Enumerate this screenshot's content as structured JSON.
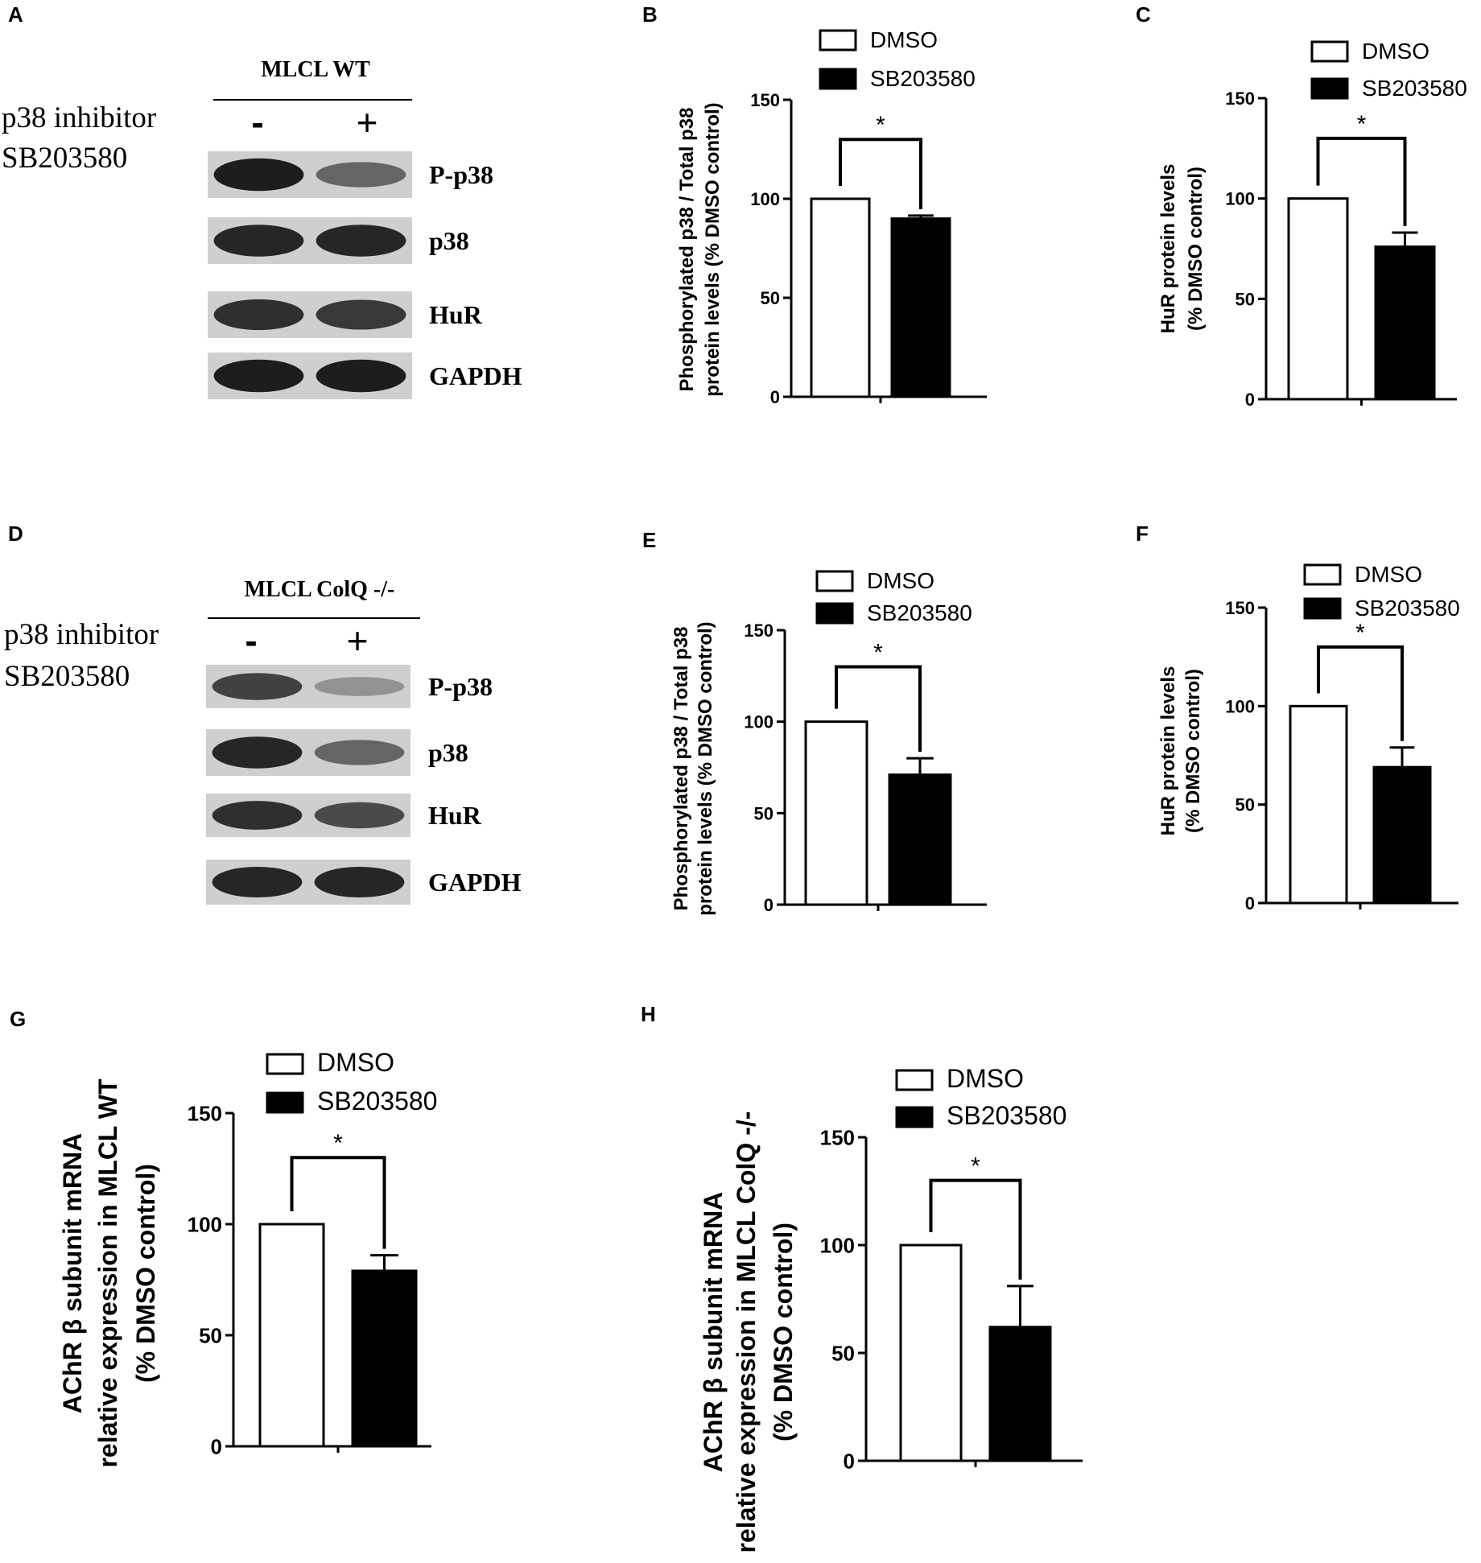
{
  "blots": [
    {
      "letter": "A",
      "header": "MLCL WT",
      "inhibitor_lines": [
        "p38 inhibitor",
        "SB203580"
      ],
      "signs": [
        "-",
        "+"
      ],
      "bands": [
        {
          "label": "P-p38",
          "lane_intensity": [
            0.95,
            0.55
          ]
        },
        {
          "label": "p38",
          "lane_intensity": [
            0.9,
            0.9
          ]
        },
        {
          "label": "HuR",
          "lane_intensity": [
            0.85,
            0.8
          ]
        },
        {
          "label": "GAPDH",
          "lane_intensity": [
            0.95,
            0.95
          ]
        }
      ]
    },
    {
      "letter": "D",
      "header": "MLCL ColQ -/-",
      "inhibitor_lines": [
        "p38 inhibitor",
        "SB203580"
      ],
      "signs": [
        "-",
        "+"
      ],
      "bands": [
        {
          "label": "P-p38",
          "lane_intensity": [
            0.75,
            0.3
          ]
        },
        {
          "label": "p38",
          "lane_intensity": [
            0.9,
            0.55
          ]
        },
        {
          "label": "HuR",
          "lane_intensity": [
            0.85,
            0.7
          ]
        },
        {
          "label": "GAPDH",
          "lane_intensity": [
            0.9,
            0.9
          ]
        }
      ]
    }
  ],
  "chart_data": [
    {
      "letter": "B",
      "type": "bar",
      "categories": [
        "DMSO",
        "SB203580"
      ],
      "values": [
        100,
        90
      ],
      "errors": [
        0,
        1.5
      ],
      "colors": [
        "#ffffff",
        "#000000"
      ],
      "ylabel_lines": [
        "Phosphorylated p38 / Total p38",
        "protein levels (% DMSO control)"
      ],
      "ylim": [
        0,
        150
      ],
      "yticks": [
        0,
        50,
        100,
        150
      ],
      "significance": "*",
      "legend": [
        "DMSO",
        "SB203580"
      ]
    },
    {
      "letter": "C",
      "type": "bar",
      "categories": [
        "DMSO",
        "SB203580"
      ],
      "values": [
        100,
        76
      ],
      "errors": [
        0,
        7
      ],
      "colors": [
        "#ffffff",
        "#000000"
      ],
      "ylabel_lines": [
        "HuR protein levels",
        "(% DMSO control)"
      ],
      "ylim": [
        0,
        150
      ],
      "yticks": [
        0,
        50,
        100,
        150
      ],
      "significance": "*",
      "legend": [
        "DMSO",
        "SB203580"
      ]
    },
    {
      "letter": "E",
      "type": "bar",
      "categories": [
        "DMSO",
        "SB203580"
      ],
      "values": [
        100,
        71
      ],
      "errors": [
        0,
        9
      ],
      "colors": [
        "#ffffff",
        "#000000"
      ],
      "ylabel_lines": [
        "Phosphorylated p38 / Total p38",
        "protein levels (% DMSO control)"
      ],
      "ylim": [
        0,
        150
      ],
      "yticks": [
        0,
        50,
        100,
        150
      ],
      "significance": "*",
      "legend": [
        "DMSO",
        "SB203580"
      ]
    },
    {
      "letter": "F",
      "type": "bar",
      "categories": [
        "DMSO",
        "SB203580"
      ],
      "values": [
        100,
        69
      ],
      "errors": [
        0,
        10
      ],
      "colors": [
        "#ffffff",
        "#000000"
      ],
      "ylabel_lines": [
        "HuR protein levels",
        "(% DMSO control)"
      ],
      "ylim": [
        0,
        150
      ],
      "yticks": [
        0,
        50,
        100,
        150
      ],
      "significance": "*",
      "legend": [
        "DMSO",
        "SB203580"
      ]
    },
    {
      "letter": "G",
      "type": "bar",
      "categories": [
        "DMSO",
        "SB203580"
      ],
      "values": [
        100,
        79
      ],
      "errors": [
        0,
        7
      ],
      "colors": [
        "#ffffff",
        "#000000"
      ],
      "ylabel_lines": [
        "AChR β subunit mRNA",
        "relative expression in MLCL WT",
        "(% DMSO control)"
      ],
      "ylim": [
        0,
        150
      ],
      "yticks": [
        0,
        50,
        100,
        150
      ],
      "significance": "*",
      "legend": [
        "DMSO",
        "SB203580"
      ]
    },
    {
      "letter": "H",
      "type": "bar",
      "categories": [
        "DMSO",
        "SB203580"
      ],
      "values": [
        100,
        62
      ],
      "errors": [
        0,
        19
      ],
      "colors": [
        "#ffffff",
        "#000000"
      ],
      "ylabel_lines": [
        "AChR β subunit mRNA",
        "relative expression in MLCL ColQ -/-",
        "(% DMSO control)"
      ],
      "ylim": [
        0,
        150
      ],
      "yticks": [
        0,
        50,
        100,
        150
      ],
      "significance": "*",
      "legend": [
        "DMSO",
        "SB203580"
      ]
    }
  ]
}
